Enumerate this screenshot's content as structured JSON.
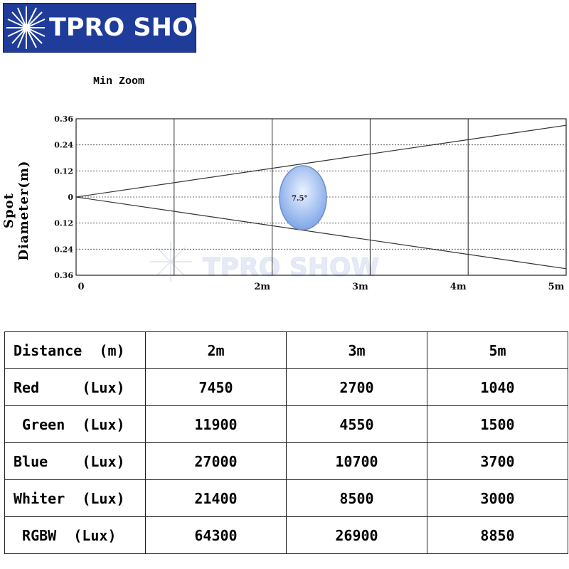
{
  "brand": {
    "name": "TPRO SHOW",
    "logo_color": "#1f3c9a"
  },
  "chart_data": {
    "type": "line",
    "title": "Min Zoom",
    "ylabel": "Spot Diameter(m)",
    "xlabel": "",
    "x_ticks": [
      "0",
      "2m",
      "3m",
      "4m",
      "5m"
    ],
    "y_ticks": [
      "0.36",
      "0.24",
      "0.12",
      "0",
      "0.12",
      "0.24",
      "0.36"
    ],
    "ylim": [
      -0.36,
      0.36
    ],
    "xlim": [
      0,
      5
    ],
    "grid": true,
    "series": [
      {
        "values": [
          [
            0,
            0
          ],
          [
            5,
            0.33
          ]
        ]
      },
      {
        "values": [
          [
            0,
            0
          ],
          [
            5,
            -0.33
          ]
        ]
      }
    ],
    "annotations": [
      {
        "text": "7.5°",
        "x": 2.3,
        "y": 0
      }
    ]
  },
  "table": {
    "header": [
      "Distance  (m)",
      "2m",
      "3m",
      "5m"
    ],
    "rows": [
      {
        "label": "Red     (Lux)",
        "values": [
          "7450",
          "2700",
          "1040"
        ]
      },
      {
        "label": " Green  (Lux)",
        "values": [
          "11900",
          "4550",
          "1500"
        ]
      },
      {
        "label": "Blue    (Lux)",
        "values": [
          "27000",
          "10700",
          "3700"
        ]
      },
      {
        "label": "Whiter  (Lux)",
        "values": [
          "21400",
          "8500",
          "3000"
        ]
      },
      {
        "label": " RGBW  (Lux)",
        "values": [
          "64300",
          "26900",
          "8850"
        ]
      }
    ]
  }
}
